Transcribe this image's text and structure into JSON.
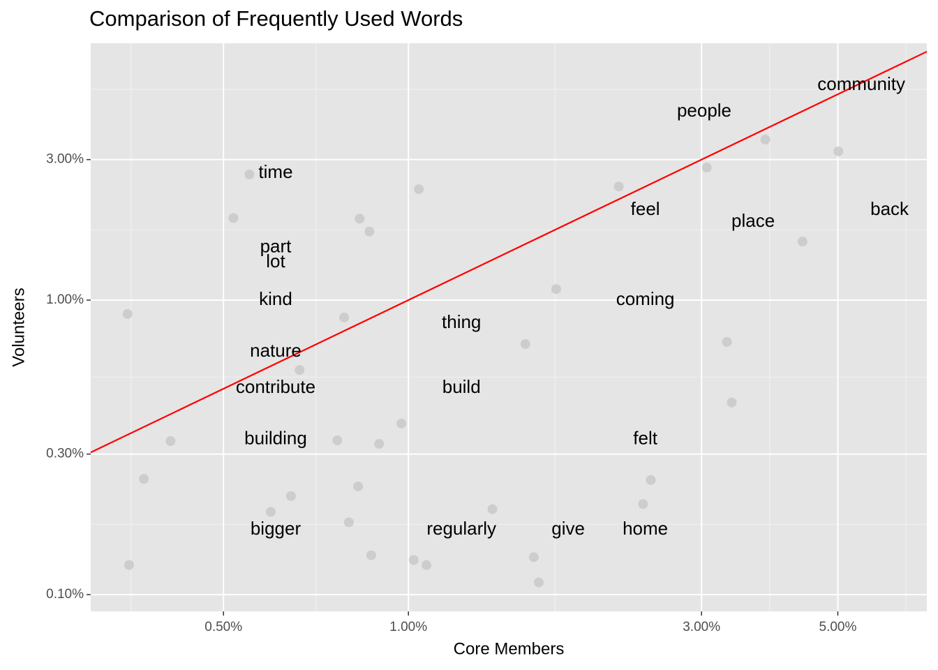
{
  "chart_data": {
    "type": "scatter",
    "title": "Comparison of Frequently Used Words",
    "x_label": "Core Members",
    "y_label": "Volunteers",
    "log_x": true,
    "log_y": true,
    "grid": true,
    "xlim": [
      0.304,
      6.98
    ],
    "ylim": [
      0.0877,
      7.45
    ],
    "xticks": [
      {
        "value": 0.5,
        "label": "0.50%"
      },
      {
        "value": 1,
        "label": "1.00%"
      },
      {
        "value": 3,
        "label": "3.00%"
      },
      {
        "value": 5,
        "label": "5.00%"
      }
    ],
    "yticks": [
      {
        "value": 0.1,
        "label": "0.10%"
      },
      {
        "value": 0.3,
        "label": "0.30%"
      },
      {
        "value": 1,
        "label": "1.00%"
      },
      {
        "value": 3,
        "label": "3.00%"
      }
    ],
    "identity_line_color": "#ff0000",
    "series": [
      {
        "color": "#c4c4c4",
        "x": [
          0.349,
          0.351,
          0.371,
          0.41,
          0.519,
          0.551,
          0.597,
          0.644,
          0.665,
          0.766,
          0.786,
          0.8,
          0.828,
          0.833,
          0.864,
          0.87,
          0.896,
          0.974,
          1.02,
          1.04,
          1.07,
          1.37,
          1.55,
          1.6,
          1.63,
          1.74,
          2.2,
          2.41,
          2.48,
          3.06,
          3.3,
          3.36,
          3.81,
          4.38,
          5.01
        ],
        "values": [
          0.897,
          0.126,
          0.247,
          0.332,
          1.9,
          2.67,
          0.191,
          0.216,
          0.579,
          0.334,
          0.873,
          0.176,
          0.233,
          1.89,
          1.71,
          0.136,
          0.325,
          0.381,
          0.131,
          2.38,
          0.126,
          0.195,
          0.709,
          0.134,
          0.11,
          1.09,
          2.43,
          0.203,
          0.245,
          2.82,
          0.721,
          0.449,
          3.51,
          1.58,
          3.2
        ]
      }
    ],
    "labels": [
      {
        "text": "community",
        "x": 5.46,
        "y": 5.37
      },
      {
        "text": "people",
        "x": 3.03,
        "y": 4.36
      },
      {
        "text": "time",
        "x": 0.608,
        "y": 2.7
      },
      {
        "text": "feel",
        "x": 2.43,
        "y": 2.02
      },
      {
        "text": "back",
        "x": 6.07,
        "y": 2.02
      },
      {
        "text": "place",
        "x": 3.64,
        "y": 1.84
      },
      {
        "text": "part",
        "x": 0.608,
        "y": 1.51
      },
      {
        "text": "lot",
        "x": 0.608,
        "y": 1.34
      },
      {
        "text": "kind",
        "x": 0.608,
        "y": 1.0
      },
      {
        "text": "coming",
        "x": 2.43,
        "y": 1.0
      },
      {
        "text": "thing",
        "x": 1.22,
        "y": 0.835
      },
      {
        "text": "nature",
        "x": 0.608,
        "y": 0.668
      },
      {
        "text": "contribute",
        "x": 0.608,
        "y": 0.503
      },
      {
        "text": "build",
        "x": 1.22,
        "y": 0.503
      },
      {
        "text": "building",
        "x": 0.608,
        "y": 0.336
      },
      {
        "text": "felt",
        "x": 2.43,
        "y": 0.336
      },
      {
        "text": "bigger",
        "x": 0.608,
        "y": 0.166
      },
      {
        "text": "regularly",
        "x": 1.22,
        "y": 0.166
      },
      {
        "text": "give",
        "x": 1.82,
        "y": 0.166
      },
      {
        "text": "home",
        "x": 2.43,
        "y": 0.166
      }
    ]
  }
}
